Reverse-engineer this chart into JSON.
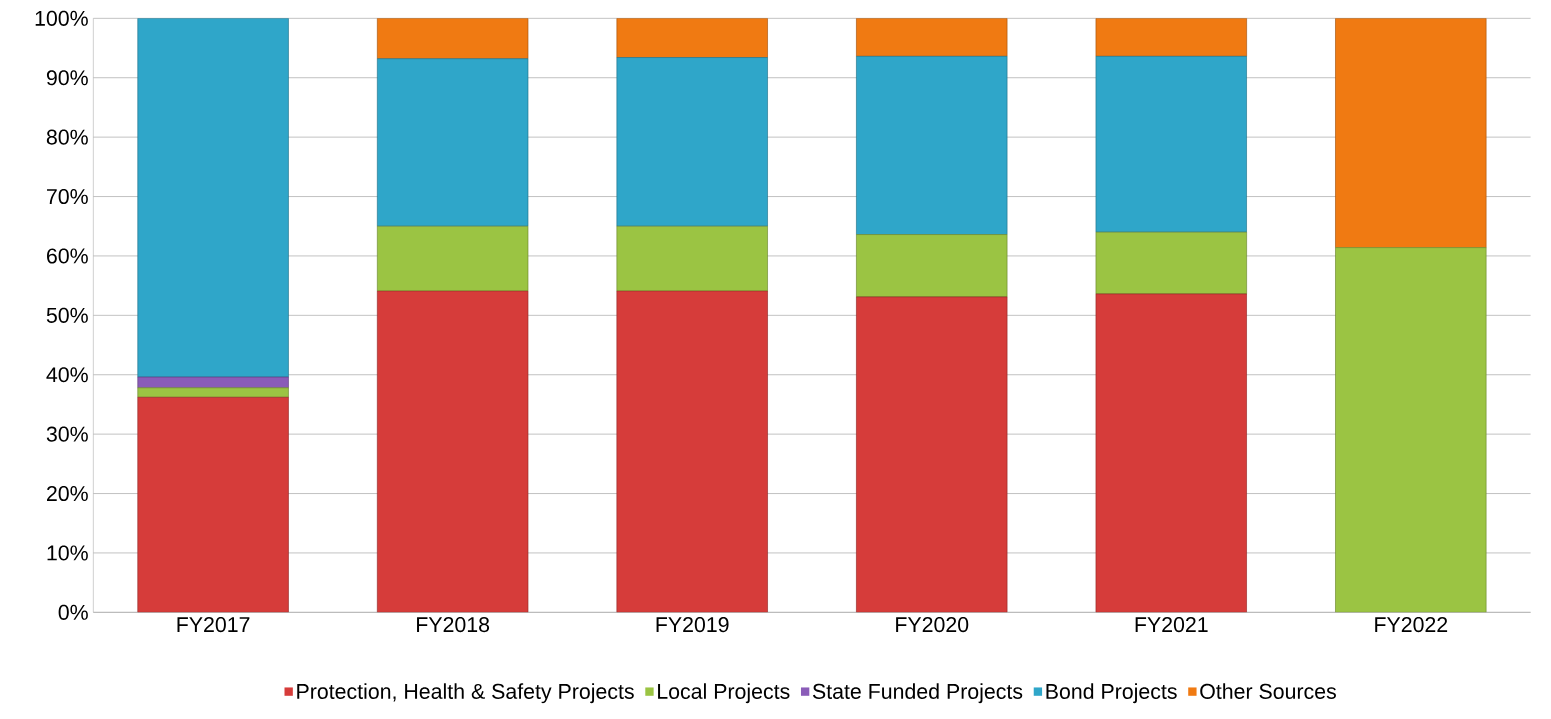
{
  "chart_data": {
    "type": "bar",
    "stacked": true,
    "categories": [
      "FY2017",
      "FY2018",
      "FY2019",
      "FY2020",
      "FY2021",
      "FY2022"
    ],
    "series": [
      {
        "name": "Protection, Health & Safety Projects",
        "color": "#d63c3a",
        "values": [
          36.2,
          54.1,
          54.1,
          53.1,
          53.6,
          0
        ]
      },
      {
        "name": "Local Projects",
        "color": "#9bc443",
        "values": [
          1.6,
          10.9,
          10.9,
          10.5,
          10.4,
          61.4
        ]
      },
      {
        "name": "State Funded Projects",
        "color": "#8a5cb8",
        "values": [
          1.8,
          0,
          0,
          0,
          0,
          0
        ]
      },
      {
        "name": "Bond Projects",
        "color": "#2fa6c9",
        "values": [
          60.4,
          28.2,
          28.4,
          30.0,
          29.6,
          0
        ]
      },
      {
        "name": "Other Sources",
        "color": "#f07a12",
        "values": [
          0,
          6.8,
          6.6,
          6.4,
          6.4,
          38.6
        ]
      }
    ],
    "ylim": [
      0,
      100
    ],
    "yticks": [
      {
        "value": 0,
        "label": "0%"
      },
      {
        "value": 10,
        "label": "10%"
      },
      {
        "value": 20,
        "label": "20%"
      },
      {
        "value": 30,
        "label": "30%"
      },
      {
        "value": 40,
        "label": "40%"
      },
      {
        "value": 50,
        "label": "50%"
      },
      {
        "value": 60,
        "label": "60%"
      },
      {
        "value": 70,
        "label": "70%"
      },
      {
        "value": 80,
        "label": "80%"
      },
      {
        "value": 90,
        "label": "90%"
      },
      {
        "value": 100,
        "label": "100%"
      }
    ],
    "grid": "y",
    "legend": "bottom"
  }
}
